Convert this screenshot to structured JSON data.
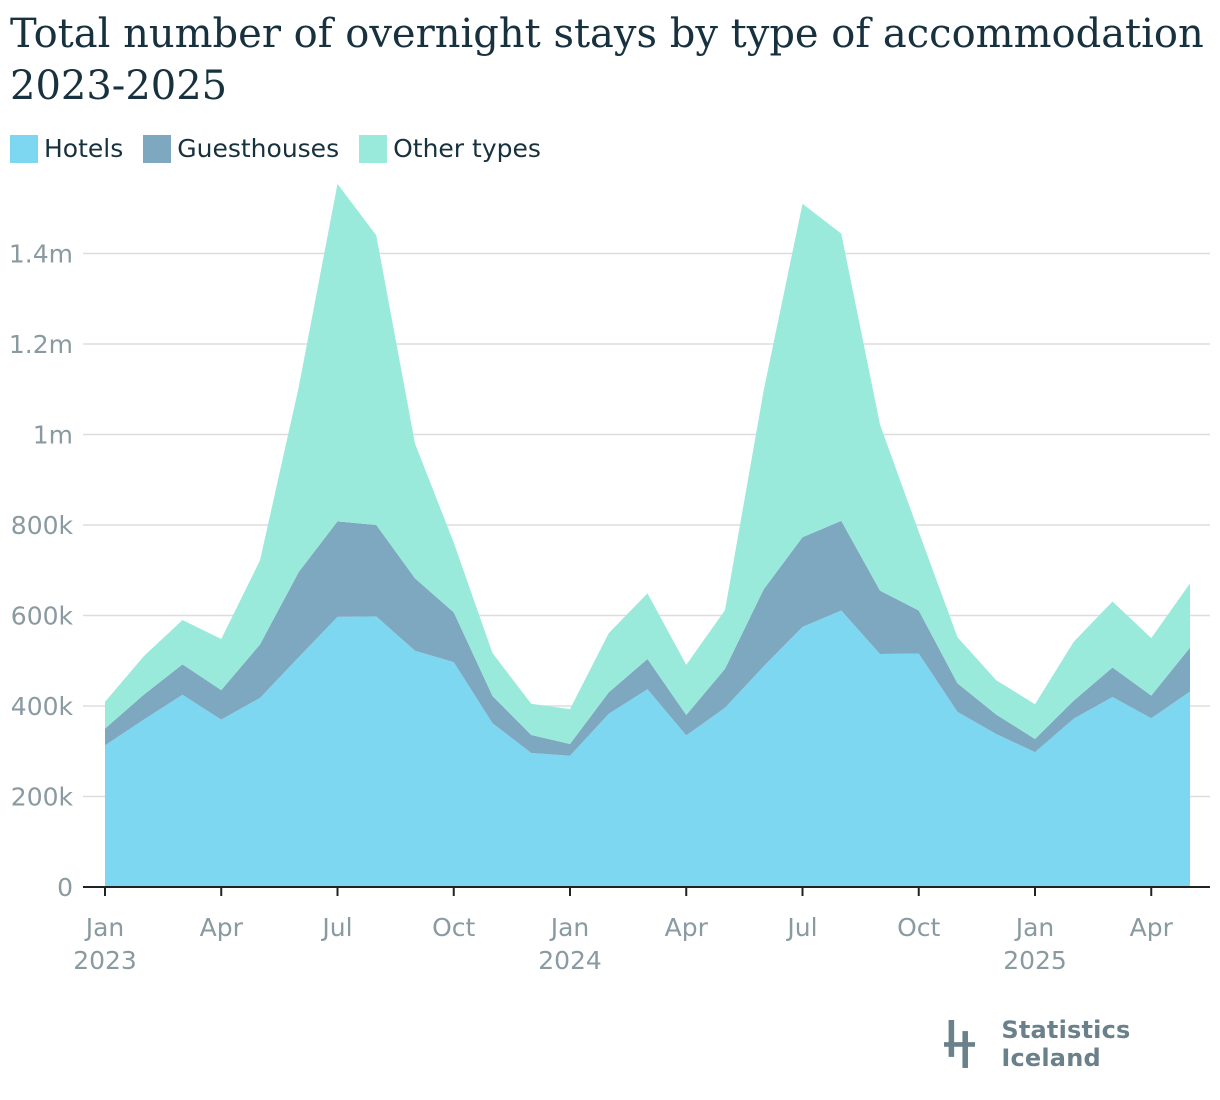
{
  "title": "Total number of overnight stays by type of accommodation 2023-2025",
  "brand": {
    "name": "Statistics Iceland",
    "logo_icon": "statistics-iceland-logo-icon"
  },
  "colors": {
    "hotels": "#7dd7f1",
    "guesthouses": "#7ea7c0",
    "other": "#9aeadc",
    "grid": "#dddddd",
    "axis": "#222222",
    "tick_text": "#8a9aa1",
    "title": "#17313e"
  },
  "chart_data": {
    "type": "area",
    "stacked": true,
    "title": "Total number of overnight stays by type of accommodation 2023-2025",
    "x": [
      "2023-01",
      "2023-02",
      "2023-03",
      "2023-04",
      "2023-05",
      "2023-06",
      "2023-07",
      "2023-08",
      "2023-09",
      "2023-10",
      "2023-11",
      "2023-12",
      "2024-01",
      "2024-02",
      "2024-03",
      "2024-04",
      "2024-05",
      "2024-06",
      "2024-07",
      "2024-08",
      "2024-09",
      "2024-10",
      "2024-11",
      "2024-12",
      "2025-01",
      "2025-02",
      "2025-03",
      "2025-04",
      "2025-05"
    ],
    "series": [
      {
        "name": "Hotels",
        "color": "#7dd7f1",
        "values": [
          313000,
          370000,
          425000,
          370000,
          418000,
          508000,
          597000,
          598000,
          522000,
          497000,
          362000,
          296000,
          290000,
          383000,
          437000,
          335000,
          396000,
          488000,
          575000,
          611000,
          515000,
          516000,
          387000,
          338000,
          298000,
          372000,
          420000,
          373000,
          432000
        ]
      },
      {
        "name": "Guesthouses",
        "color": "#7ea7c0",
        "values": [
          37000,
          55000,
          67000,
          65000,
          118000,
          188000,
          211000,
          202000,
          160000,
          110000,
          60000,
          40000,
          26000,
          47000,
          67000,
          45000,
          86000,
          170000,
          198000,
          198000,
          140000,
          95000,
          63000,
          43000,
          29000,
          40000,
          65000,
          50000,
          97000
        ]
      },
      {
        "name": "Other types",
        "color": "#9aeadc",
        "values": [
          59000,
          85000,
          98000,
          113000,
          186000,
          409000,
          746000,
          640000,
          298000,
          154000,
          95000,
          69000,
          77000,
          131000,
          145000,
          111000,
          130000,
          440000,
          737000,
          635000,
          367000,
          174000,
          102000,
          76000,
          77000,
          130000,
          146000,
          127000,
          142000
        ]
      }
    ],
    "ylim": [
      0,
      1550000
    ],
    "yticks": [
      0,
      200000,
      400000,
      600000,
      800000,
      1000000,
      1200000,
      1400000
    ],
    "ytick_labels": [
      "0",
      "200k",
      "400k",
      "600k",
      "800k",
      "1m",
      "1.2m",
      "1.4m"
    ],
    "xticks": [
      {
        "x": "2023-01",
        "label": "Jan",
        "year": "2023"
      },
      {
        "x": "2023-04",
        "label": "Apr",
        "year": ""
      },
      {
        "x": "2023-07",
        "label": "Jul",
        "year": ""
      },
      {
        "x": "2023-10",
        "label": "Oct",
        "year": ""
      },
      {
        "x": "2024-01",
        "label": "Jan",
        "year": "2024"
      },
      {
        "x": "2024-04",
        "label": "Apr",
        "year": ""
      },
      {
        "x": "2024-07",
        "label": "Jul",
        "year": ""
      },
      {
        "x": "2024-10",
        "label": "Oct",
        "year": ""
      },
      {
        "x": "2025-01",
        "label": "Jan",
        "year": "2025"
      },
      {
        "x": "2025-04",
        "label": "Apr",
        "year": ""
      }
    ],
    "grid": true,
    "legend": "top-left"
  }
}
